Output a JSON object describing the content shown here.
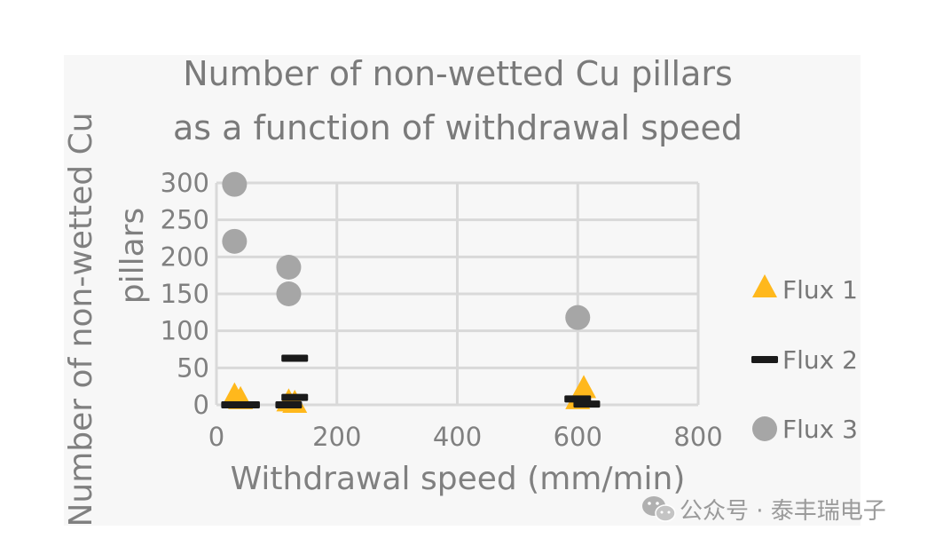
{
  "chart_data": {
    "type": "scatter",
    "title_lines": [
      "Number of non-wetted Cu pillars",
      "as a function of withdrawal speed"
    ],
    "xlabel": "Withdrawal speed (mm/min)",
    "ylabel_lines": [
      "Number of non-wetted Cu",
      "pillars"
    ],
    "xlim": [
      0,
      800
    ],
    "ylim": [
      0,
      300
    ],
    "x_ticks": [
      0,
      200,
      400,
      600,
      800
    ],
    "y_ticks": [
      0,
      50,
      100,
      150,
      200,
      250,
      300
    ],
    "grid": true,
    "legend_position": "right",
    "series": [
      {
        "name": "Flux 1",
        "marker": "triangle",
        "color": "#FFB81C",
        "points": [
          [
            30,
            10
          ],
          [
            40,
            5
          ],
          [
            120,
            2
          ],
          [
            130,
            0
          ],
          [
            600,
            5
          ],
          [
            610,
            20
          ]
        ]
      },
      {
        "name": "Flux 2",
        "marker": "dash",
        "color": "#1a1a1a",
        "points": [
          [
            30,
            0
          ],
          [
            50,
            0
          ],
          [
            120,
            0
          ],
          [
            130,
            10
          ],
          [
            130,
            63
          ],
          [
            600,
            8
          ],
          [
            615,
            1
          ]
        ]
      },
      {
        "name": "Flux 3",
        "marker": "circle",
        "color": "#a6a6a6",
        "points": [
          [
            30,
            298
          ],
          [
            30,
            221
          ],
          [
            120,
            186
          ],
          [
            120,
            150
          ],
          [
            600,
            118
          ]
        ]
      }
    ]
  },
  "watermark": {
    "text": "公众号 · 泰丰瑞电子",
    "icon": "wechat-icon"
  }
}
